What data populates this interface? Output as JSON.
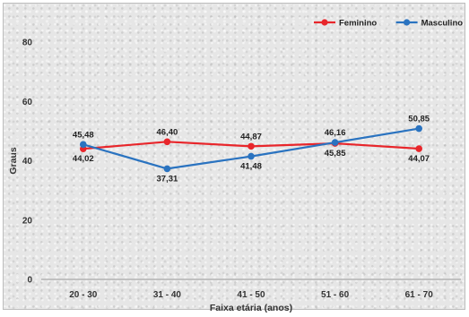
{
  "chart_data": {
    "type": "line",
    "xlabel": "Faixa etária (anos)",
    "ylabel": "Graus",
    "categories": [
      "20 - 30",
      "31 - 40",
      "41 - 50",
      "51 - 60",
      "61 - 70"
    ],
    "ylim": [
      0,
      80
    ],
    "yticks": [
      "0",
      "20",
      "40",
      "60",
      "80"
    ],
    "grid": false,
    "legend_position": "top-right",
    "series": [
      {
        "name": "Feminino",
        "color": "#e8262b",
        "values": [
          44.02,
          46.4,
          44.87,
          45.85,
          44.07
        ],
        "labels": [
          "44,02",
          "46,40",
          "44,87",
          "45,85",
          "44,07"
        ]
      },
      {
        "name": "Masculino",
        "color": "#2a73c0",
        "values": [
          45.48,
          37.31,
          41.48,
          46.16,
          50.85
        ],
        "labels": [
          "45,48",
          "37,31",
          "41,48",
          "46,16",
          "50,85"
        ]
      }
    ]
  }
}
